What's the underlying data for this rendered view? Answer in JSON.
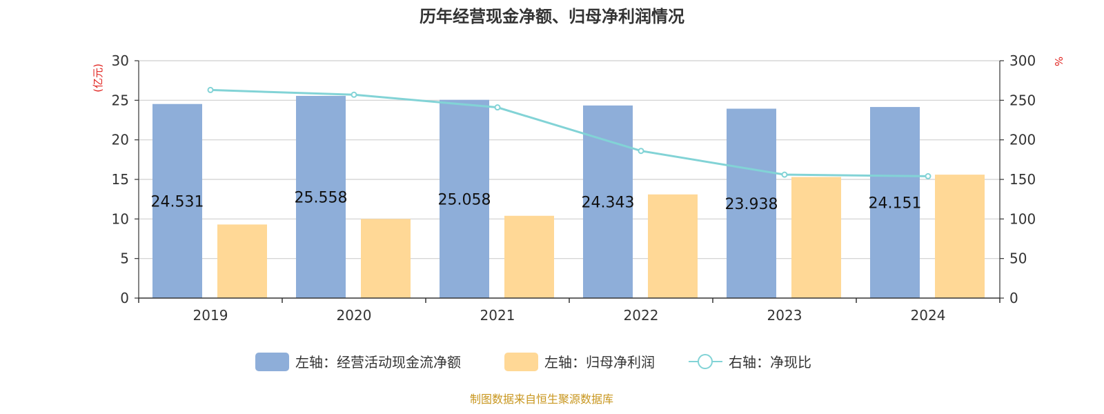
{
  "chart_data": {
    "type": "bar",
    "title": "历年经营现金净额、归母净利润情况",
    "categories": [
      "2019",
      "2020",
      "2021",
      "2022",
      "2023",
      "2024"
    ],
    "left_axis": {
      "unit": "(亿元)",
      "ylim": [
        0,
        30
      ],
      "ticks": [
        0,
        5,
        10,
        15,
        20,
        25,
        30
      ]
    },
    "right_axis": {
      "unit": "%",
      "ylim": [
        0,
        300
      ],
      "ticks": [
        0,
        50,
        100,
        150,
        200,
        250,
        300
      ]
    },
    "series": [
      {
        "name": "左轴：经营活动现金流净额",
        "type": "bar",
        "axis": "left",
        "color": "#8eaed9",
        "values": [
          24.531,
          25.558,
          25.058,
          24.343,
          23.938,
          24.151
        ],
        "labels": [
          "24.531",
          "25.558",
          "25.058",
          "24.343",
          "23.938",
          "24.151"
        ]
      },
      {
        "name": "左轴：归母净利润",
        "type": "bar",
        "axis": "left",
        "color": "#ffd896",
        "values": [
          9.3,
          10.0,
          10.4,
          13.1,
          15.3,
          15.6
        ]
      },
      {
        "name": "右轴：净现比",
        "type": "line",
        "axis": "right",
        "color": "#82d3d6",
        "values": [
          263,
          257,
          241,
          186,
          156,
          154
        ]
      }
    ],
    "grid": true,
    "legend_position": "bottom"
  },
  "source": "制图数据来自恒生聚源数据库"
}
